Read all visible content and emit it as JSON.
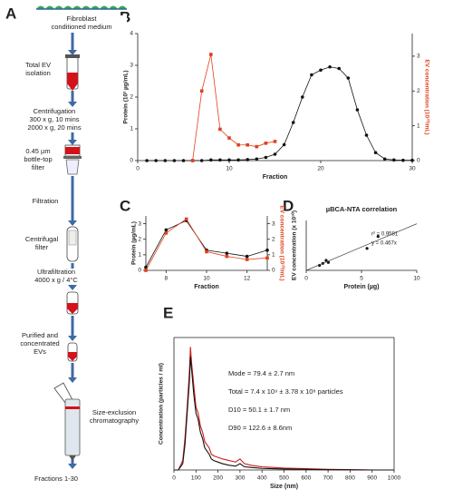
{
  "panels": [
    "A",
    "B",
    "C",
    "D",
    "E"
  ],
  "workflow": {
    "steps": [
      [
        "Fibroblast",
        "conditioned medium"
      ],
      [
        "Total EV",
        "isolation"
      ],
      [
        "Centrifugation",
        "300 x g, 10 mins",
        "2000 x g, 20 mins"
      ],
      [
        "0.45 µm",
        "bottle-top",
        "filter"
      ],
      [
        "Filtration"
      ],
      [
        "Centrifugal",
        "filter"
      ],
      [
        "Ultrafiltration",
        "4000 x g / 4°C"
      ],
      [
        "Purified and",
        "concentrated",
        "EVs"
      ],
      [
        "Size-exclusion",
        "chromatography"
      ],
      [
        "Fractions 1-30"
      ]
    ]
  },
  "chart_data": [
    {
      "type": "line",
      "xlabel": "Fraction",
      "ylabel": "Protein (10² µg/mL)",
      "y2label": "EV concentration (10¹⁰/mL)",
      "xlim": [
        0,
        30
      ],
      "xticks": [
        0,
        10,
        20,
        30
      ],
      "ylim": [
        0,
        4
      ],
      "yticks": [
        0,
        1,
        2,
        3,
        4
      ],
      "y2lim": [
        0,
        3.65
      ],
      "y2ticks": [
        0,
        1,
        2,
        3
      ],
      "series": [
        {
          "color": "#111111",
          "marker": "circle",
          "x": [
            1,
            2,
            3,
            4,
            5,
            6,
            7,
            8,
            9,
            10,
            11,
            12,
            13,
            14,
            15,
            16,
            17,
            18,
            19,
            20,
            21,
            22,
            23,
            24,
            25,
            26,
            27,
            28,
            29,
            30
          ],
          "values": [
            0,
            0,
            0,
            0,
            0,
            0,
            0,
            0.02,
            0.02,
            0.02,
            0.02,
            0.03,
            0.05,
            0.1,
            0.2,
            0.5,
            1.2,
            2.0,
            2.7,
            2.85,
            2.95,
            2.9,
            2.6,
            1.6,
            0.8,
            0.25,
            0.05,
            0.02,
            0.01,
            0.01
          ]
        },
        {
          "color": "#e0401c",
          "marker": "square",
          "axis": "y2",
          "x": [
            6,
            7,
            8,
            9,
            10,
            11,
            12,
            13,
            14,
            15
          ],
          "values": [
            0,
            2.0,
            3.05,
            0.9,
            0.65,
            0.45,
            0.45,
            0.4,
            0.5,
            0.55
          ]
        }
      ]
    },
    {
      "type": "line",
      "xlabel": "Fraction",
      "ylabel": "Protein (µg/mL)",
      "y2label": "EV concentration (10¹⁰/mL)",
      "xlim": [
        7,
        13
      ],
      "xticks": [
        8,
        10,
        12
      ],
      "ylim": [
        0,
        3.5
      ],
      "yticks": [
        0,
        1,
        2,
        3
      ],
      "y2lim": [
        0,
        3.5
      ],
      "y2ticks": [
        0,
        1,
        2,
        3
      ],
      "series": [
        {
          "color": "#111111",
          "marker": "circle",
          "x": [
            7,
            8,
            9,
            10,
            11,
            12,
            13
          ],
          "values": [
            0.2,
            2.6,
            3.2,
            1.3,
            1.1,
            0.9,
            1.3
          ]
        },
        {
          "color": "#e0401c",
          "marker": "square",
          "axis": "y2",
          "x": [
            7,
            8,
            9,
            10,
            11,
            12,
            13
          ],
          "values": [
            0,
            2.4,
            3.3,
            1.2,
            0.9,
            0.7,
            0.8
          ]
        }
      ]
    },
    {
      "type": "scatter",
      "title": "µBCA-NTA correlation",
      "xlabel": "Protein (µg)",
      "ylabel": "EV concentration (x 10¹⁰)",
      "xlim": [
        0,
        10
      ],
      "xticks": [
        0,
        5,
        10
      ],
      "ylim": [
        0,
        5
      ],
      "color": "#111111",
      "x": [
        1.2,
        1.5,
        1.8,
        2.0,
        5.5,
        6.5
      ],
      "values": [
        0.5,
        0.7,
        1.0,
        0.8,
        2.2,
        3.4
      ],
      "fit_slope": 0.467,
      "annotations": [
        "r² = 0.9581",
        "y = 0.467x"
      ]
    },
    {
      "type": "line",
      "xlabel": "Size (nm)",
      "ylabel": "Concentration (particles / ml)",
      "xlim": [
        0,
        1000
      ],
      "xticks": [
        0,
        100,
        200,
        300,
        400,
        500,
        600,
        700,
        800,
        900,
        1000
      ],
      "ylim": [
        0,
        4.2
      ],
      "x": [
        0,
        20,
        40,
        50,
        60,
        70,
        75,
        80,
        90,
        100,
        110,
        120,
        130,
        140,
        150,
        160,
        170,
        180,
        200,
        220,
        250,
        280,
        300,
        320,
        350,
        400,
        450,
        500,
        600,
        700,
        800,
        900,
        1000
      ],
      "series": [
        {
          "color": "#d0201a",
          "values": [
            0,
            0,
            0.3,
            1.0,
            2.0,
            3.1,
            3.9,
            3.4,
            2.7,
            2.0,
            1.8,
            1.4,
            1.2,
            0.9,
            0.8,
            0.7,
            0.5,
            0.45,
            0.4,
            0.35,
            0.3,
            0.25,
            0.35,
            0.2,
            0.15,
            0.1,
            0.08,
            0.06,
            0.04,
            0.02,
            0.01,
            0,
            0
          ]
        },
        {
          "color": "#111111",
          "values": [
            0,
            0,
            0.2,
            0.8,
            1.8,
            2.8,
            3.6,
            3.2,
            2.4,
            1.8,
            1.6,
            1.2,
            1.0,
            0.7,
            0.6,
            0.5,
            0.35,
            0.3,
            0.25,
            0.2,
            0.15,
            0.12,
            0.2,
            0.1,
            0.08,
            0.05,
            0.04,
            0.03,
            0.02,
            0.01,
            0.005,
            0,
            0
          ]
        }
      ],
      "annotations": [
        "Mode = 79.4 ± 2.7 nm",
        "Total = 7.4 x 10⁹ ± 3.78 x 10⁸ particles",
        "D10 = 50.1 ± 1.7 nm",
        "D90 = 122.6 ± 8.6nm"
      ]
    }
  ]
}
